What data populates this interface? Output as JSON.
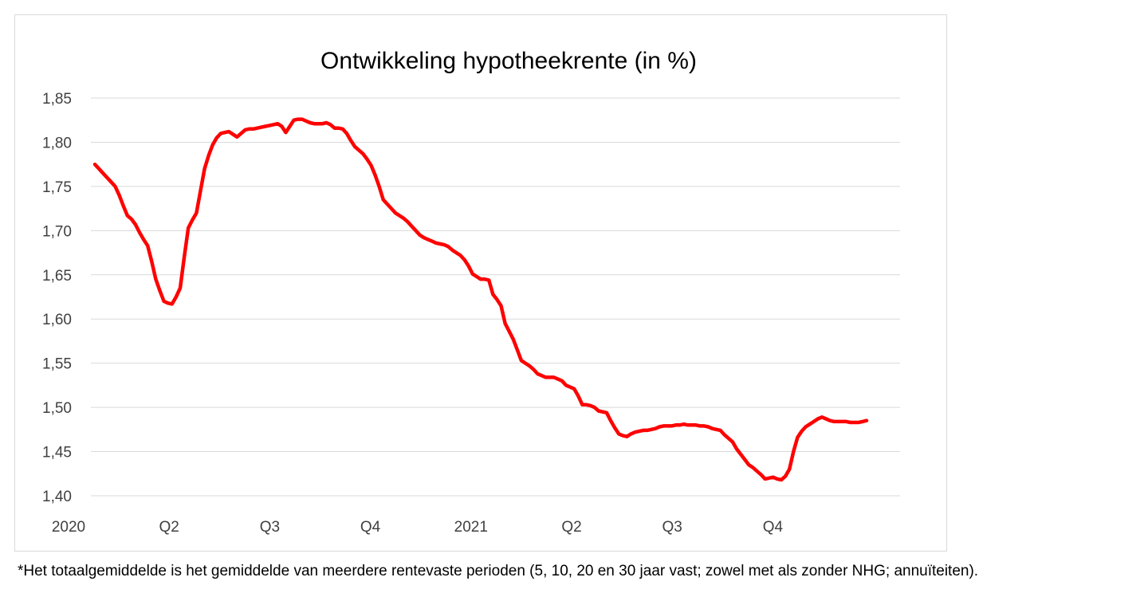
{
  "chart_data": {
    "type": "line",
    "title": "Ontwikkeling hypotheekrente (in %)",
    "xlabel": "",
    "ylabel": "",
    "ylim": [
      1.4,
      1.85
    ],
    "y_ticks": [
      "1,85",
      "1,80",
      "1,75",
      "1,70",
      "1,65",
      "1,60",
      "1,55",
      "1,50",
      "1,45",
      "1,40"
    ],
    "x_ticks": [
      "2020",
      "Q2",
      "Q3",
      "Q4",
      "2021",
      "Q2",
      "Q3",
      "Q4"
    ],
    "grid": true,
    "legend": "none",
    "line_color": "#ff0000",
    "grid_color": "#d9d9d9",
    "series": [
      {
        "values": [
          1.775,
          1.77,
          1.765,
          1.76,
          1.755,
          1.75,
          1.74,
          1.728,
          1.717,
          1.713,
          1.707,
          1.698,
          1.69,
          1.683,
          1.665,
          1.645,
          1.632,
          1.62,
          1.618,
          1.617,
          1.625,
          1.635,
          1.67,
          1.703,
          1.712,
          1.72,
          1.745,
          1.77,
          1.785,
          1.797,
          1.805,
          1.81,
          1.811,
          1.812,
          1.809,
          1.806,
          1.81,
          1.814,
          1.815,
          1.815,
          1.816,
          1.817,
          1.818,
          1.819,
          1.82,
          1.821,
          1.818,
          1.811,
          1.818,
          1.825,
          1.826,
          1.826,
          1.824,
          1.822,
          1.821,
          1.821,
          1.821,
          1.822,
          1.82,
          1.816,
          1.816,
          1.815,
          1.81,
          1.802,
          1.795,
          1.791,
          1.787,
          1.781,
          1.774,
          1.763,
          1.75,
          1.735,
          1.73,
          1.725,
          1.72,
          1.717,
          1.714,
          1.71,
          1.705,
          1.7,
          1.695,
          1.692,
          1.69,
          1.688,
          1.686,
          1.685,
          1.684,
          1.682,
          1.678,
          1.675,
          1.672,
          1.667,
          1.66,
          1.651,
          1.648,
          1.645,
          1.645,
          1.644,
          1.628,
          1.622,
          1.615,
          1.595,
          1.586,
          1.577,
          1.565,
          1.553,
          1.55,
          1.547,
          1.543,
          1.538,
          1.536,
          1.534,
          1.534,
          1.534,
          1.532,
          1.53,
          1.525,
          1.523,
          1.521,
          1.513,
          1.503,
          1.503,
          1.502,
          1.5,
          1.496,
          1.495,
          1.494,
          1.485,
          1.477,
          1.47,
          1.468,
          1.467,
          1.47,
          1.472,
          1.473,
          1.474,
          1.474,
          1.475,
          1.476,
          1.478,
          1.479,
          1.479,
          1.479,
          1.48,
          1.48,
          1.481,
          1.48,
          1.48,
          1.48,
          1.479,
          1.479,
          1.478,
          1.476,
          1.475,
          1.474,
          1.469,
          1.465,
          1.461,
          1.453,
          1.447,
          1.441,
          1.435,
          1.432,
          1.428,
          1.424,
          1.419,
          1.42,
          1.421,
          1.419,
          1.418,
          1.422,
          1.43,
          1.45,
          1.466,
          1.473,
          1.478,
          1.481,
          1.484,
          1.487,
          1.489,
          1.487,
          1.485,
          1.484,
          1.484,
          1.484,
          1.484,
          1.483,
          1.483,
          1.483,
          1.484,
          1.485
        ]
      }
    ]
  },
  "footnote": "*Het totaalgemiddelde is het gemiddelde van meerdere rentevaste perioden (5, 10, 20 en 30 jaar vast; zowel met als zonder NHG; annuïteiten)."
}
